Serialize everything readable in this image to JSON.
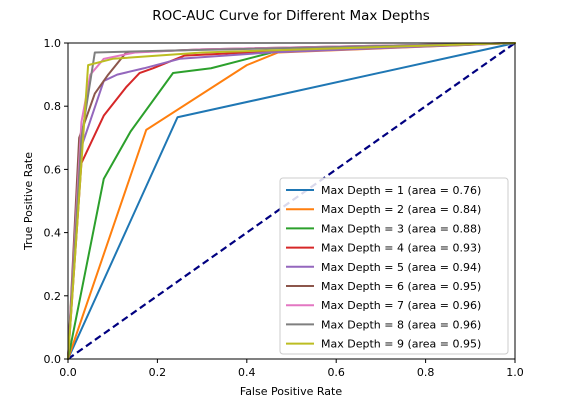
{
  "chart_data": {
    "type": "line",
    "title": "ROC-AUC Curve for Different Max Depths",
    "xlabel": "False Positive Rate",
    "ylabel": "True Positive Rate",
    "xlim": [
      0.0,
      1.0
    ],
    "ylim": [
      0.0,
      1.0
    ],
    "xticks": [
      "0.0",
      "0.2",
      "0.4",
      "0.6",
      "0.8",
      "1.0"
    ],
    "yticks": [
      "0.0",
      "0.2",
      "0.4",
      "0.6",
      "0.8",
      "1.0"
    ],
    "grid": false,
    "legend_position": "lower-right",
    "diagonal": {
      "x": [
        0,
        1
      ],
      "y": [
        0,
        1
      ],
      "color": "#000080",
      "style": "dashed"
    },
    "series": [
      {
        "name": "Max Depth = 1 (area = 0.76)",
        "color": "#1f77b4",
        "x": [
          0,
          0.245,
          1
        ],
        "y": [
          0,
          0.765,
          1
        ]
      },
      {
        "name": "Max Depth = 2 (area = 0.84)",
        "color": "#ff7f0e",
        "x": [
          0,
          0.175,
          0.4,
          0.47,
          1
        ],
        "y": [
          0,
          0.725,
          0.93,
          0.97,
          1
        ]
      },
      {
        "name": "Max Depth = 3 (area = 0.88)",
        "color": "#2ca02c",
        "x": [
          0,
          0.08,
          0.14,
          0.235,
          0.32,
          0.47,
          1
        ],
        "y": [
          0,
          0.57,
          0.72,
          0.905,
          0.92,
          0.975,
          1
        ]
      },
      {
        "name": "Max Depth = 4 (area = 0.93)",
        "color": "#d62728",
        "x": [
          0,
          0.03,
          0.08,
          0.13,
          0.16,
          0.19,
          0.26,
          0.4,
          1
        ],
        "y": [
          0,
          0.62,
          0.77,
          0.86,
          0.905,
          0.92,
          0.96,
          0.97,
          1
        ]
      },
      {
        "name": "Max Depth = 5 (area = 0.94)",
        "color": "#9467bd",
        "x": [
          0,
          0.025,
          0.08,
          0.11,
          0.17,
          0.25,
          0.45,
          1
        ],
        "y": [
          0,
          0.65,
          0.88,
          0.9,
          0.92,
          0.95,
          0.97,
          1
        ]
      },
      {
        "name": "Max Depth = 6 (area = 0.95)",
        "color": "#8c564b",
        "x": [
          0,
          0.025,
          0.06,
          0.09,
          0.13,
          0.3,
          1
        ],
        "y": [
          0,
          0.7,
          0.84,
          0.9,
          0.97,
          0.98,
          1
        ]
      },
      {
        "name": "Max Depth = 7 (area = 0.96)",
        "color": "#e377c2",
        "x": [
          0,
          0.03,
          0.05,
          0.08,
          0.15,
          0.3,
          1
        ],
        "y": [
          0,
          0.75,
          0.9,
          0.95,
          0.97,
          0.98,
          1
        ]
      },
      {
        "name": "Max Depth = 8 (area = 0.96)",
        "color": "#7f7f7f",
        "x": [
          0,
          0.03,
          0.06,
          0.2,
          1
        ],
        "y": [
          0,
          0.7,
          0.97,
          0.975,
          1
        ]
      },
      {
        "name": "Max Depth = 9 (area = 0.95)",
        "color": "#bcbd22",
        "x": [
          0,
          0.045,
          0.1,
          0.3,
          1
        ],
        "y": [
          0,
          0.93,
          0.95,
          0.97,
          1
        ]
      }
    ]
  }
}
